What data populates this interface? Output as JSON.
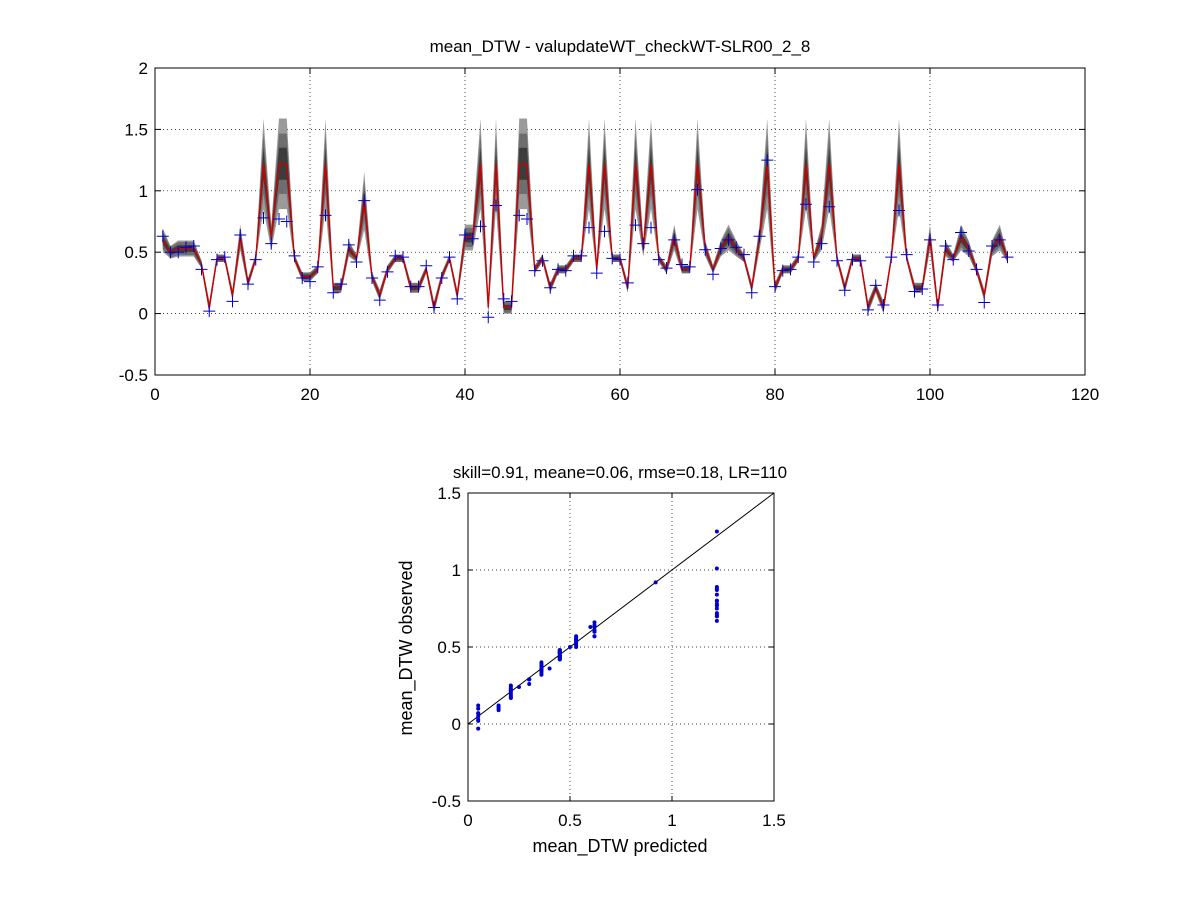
{
  "chart_data": [
    {
      "type": "line",
      "title": "mean_DTW - valupdateWT_checkWT-SLR00_2_8",
      "xlabel": "",
      "ylabel": "",
      "xlim": [
        0,
        120
      ],
      "ylim": [
        -0.5,
        2
      ],
      "xticks": [
        0,
        20,
        40,
        60,
        80,
        100,
        120
      ],
      "yticks": [
        -0.5,
        0,
        0.5,
        1,
        1.5,
        2
      ],
      "xtick_labels": [
        "0",
        "20",
        "40",
        "60",
        "80",
        "100",
        "120"
      ],
      "ytick_labels": [
        "-0.5",
        "0",
        "0.5",
        "1",
        "1.5",
        "2"
      ],
      "grid": true,
      "x": [
        1,
        2,
        3,
        4,
        5,
        6,
        7,
        8,
        9,
        10,
        11,
        12,
        13,
        14,
        15,
        16,
        17,
        18,
        19,
        20,
        21,
        22,
        23,
        24,
        25,
        26,
        27,
        28,
        29,
        30,
        31,
        32,
        33,
        34,
        35,
        36,
        37,
        38,
        39,
        40,
        41,
        42,
        43,
        44,
        45,
        46,
        47,
        48,
        49,
        50,
        51,
        52,
        53,
        54,
        55,
        56,
        57,
        58,
        59,
        60,
        61,
        62,
        63,
        64,
        65,
        66,
        67,
        68,
        69,
        70,
        71,
        72,
        73,
        74,
        75,
        76,
        77,
        78,
        79,
        80,
        81,
        82,
        83,
        84,
        85,
        86,
        87,
        88,
        89,
        90,
        91,
        92,
        93,
        94,
        95,
        96,
        97,
        98,
        99,
        100,
        101,
        102,
        103,
        104,
        105,
        106,
        107,
        108,
        109,
        110
      ],
      "series": [
        {
          "kind": "predicted-mean-line",
          "color": "#cc0000",
          "values": [
            0.6,
            0.5,
            0.53,
            0.53,
            0.53,
            0.4,
            0.05,
            0.45,
            0.45,
            0.15,
            0.62,
            0.25,
            0.45,
            1.22,
            0.62,
            1.22,
            1.22,
            0.45,
            0.3,
            0.3,
            0.36,
            1.22,
            0.21,
            0.21,
            0.53,
            0.45,
            0.92,
            0.3,
            0.15,
            0.36,
            0.45,
            0.45,
            0.21,
            0.21,
            0.36,
            0.05,
            0.3,
            0.45,
            0.15,
            0.62,
            0.62,
            1.22,
            0.05,
            1.22,
            0.05,
            0.05,
            1.22,
            1.22,
            0.36,
            0.45,
            0.21,
            0.36,
            0.36,
            0.45,
            0.45,
            1.22,
            0.36,
            1.22,
            0.45,
            0.45,
            0.21,
            1.22,
            0.53,
            1.22,
            0.45,
            0.36,
            0.62,
            0.36,
            0.36,
            1.22,
            0.53,
            0.36,
            0.53,
            0.62,
            0.53,
            0.45,
            0.21,
            0.62,
            1.22,
            0.21,
            0.36,
            0.36,
            0.45,
            1.22,
            0.45,
            0.62,
            1.22,
            0.45,
            0.21,
            0.45,
            0.45,
            0.05,
            0.21,
            0.05,
            0.45,
            1.22,
            0.45,
            0.21,
            0.21,
            0.62,
            0.05,
            0.53,
            0.45,
            0.62,
            0.53,
            0.36,
            0.15,
            0.53,
            0.62,
            0.45
          ]
        },
        {
          "kind": "observed-markers",
          "marker": "+",
          "color": "#0000cc",
          "values": [
            0.63,
            0.5,
            0.5,
            0.54,
            0.55,
            0.36,
            0.02,
            0.44,
            0.46,
            0.1,
            0.64,
            0.24,
            0.44,
            0.78,
            0.57,
            0.77,
            0.75,
            0.47,
            0.29,
            0.26,
            0.38,
            0.8,
            0.17,
            0.24,
            0.56,
            0.42,
            0.92,
            0.29,
            0.11,
            0.34,
            0.47,
            0.46,
            0.22,
            0.22,
            0.39,
            0.05,
            0.29,
            0.46,
            0.12,
            0.64,
            0.61,
            0.71,
            -0.03,
            0.88,
            0.12,
            0.1,
            0.8,
            0.77,
            0.35,
            0.43,
            0.21,
            0.36,
            0.35,
            0.47,
            0.47,
            0.7,
            0.33,
            0.67,
            0.45,
            0.44,
            0.25,
            0.72,
            0.57,
            0.7,
            0.44,
            0.37,
            0.6,
            0.4,
            0.38,
            1.01,
            0.52,
            0.32,
            0.53,
            0.6,
            0.54,
            0.48,
            0.17,
            0.63,
            1.25,
            0.22,
            0.35,
            0.36,
            0.46,
            0.89,
            0.42,
            0.57,
            0.87,
            0.43,
            0.19,
            0.44,
            0.43,
            0.03,
            0.23,
            0.07,
            0.46,
            0.84,
            0.48,
            0.18,
            0.2,
            0.6,
            0.07,
            0.55,
            0.44,
            0.66,
            0.51,
            0.36,
            0.09,
            0.55,
            0.6,
            0.46
          ]
        }
      ]
    },
    {
      "type": "scatter",
      "title": "skill=0.91, meane=0.06, rmse=0.18, LR=110",
      "xlabel": "mean_DTW predicted",
      "ylabel": "mean_DTW observed",
      "xlim": [
        0,
        1.5
      ],
      "ylim": [
        -0.5,
        1.5
      ],
      "xticks": [
        0,
        0.5,
        1,
        1.5
      ],
      "yticks": [
        -0.5,
        0,
        0.5,
        1,
        1.5
      ],
      "xtick_labels": [
        "0",
        "0.5",
        "1",
        "1.5"
      ],
      "ytick_labels": [
        "-0.5",
        "0",
        "0.5",
        "1",
        "1.5"
      ],
      "grid": true,
      "reference_line": "y = x",
      "marker_color": "#0000cc",
      "note": "points are (predicted, observed) pairs of the top panel's series"
    }
  ]
}
